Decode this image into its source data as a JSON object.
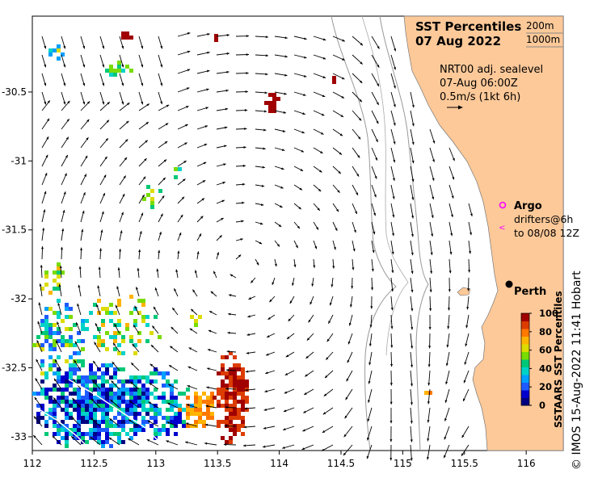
{
  "map": {
    "title_line1": "SST Percentiles",
    "title_line2": "07 Aug 2022",
    "isobath_labels": [
      "200m",
      "1000m"
    ],
    "current_info": [
      "NRT00 adj. sealevel",
      "07-Aug 06:00Z",
      "0.5m/s (1kt 6h)"
    ],
    "legend": {
      "argo_label": "Argo",
      "drifters_line1": "drifters@6h",
      "drifters_line2": "to 08/08 12Z"
    },
    "city_label": "Perth",
    "credit": "© IMOS 15-Aug-2022 11:41 Hobart",
    "extent": {
      "lon_min": 112,
      "lon_max": 116.3,
      "lat_min": -33.1,
      "lat_max": -29.95
    },
    "x_ticks": [
      "112",
      "112.5",
      "113",
      "113.5",
      "114",
      "114.5",
      "115",
      "115.5",
      "116"
    ],
    "y_ticks": [
      "-30.5",
      "-31",
      "-31.5",
      "-32",
      "-32.5",
      "-33"
    ],
    "colorbar": {
      "title": "SSTAARS SST Percentiles",
      "ticks": [
        "0",
        "20",
        "40",
        "60",
        "80",
        "100"
      ],
      "colors": [
        "#000080",
        "#0000cd",
        "#1e5aff",
        "#00a0ff",
        "#00d2c8",
        "#00c878",
        "#78dc00",
        "#dcdc00",
        "#ffb400",
        "#ff7800",
        "#dc3c00",
        "#a00000"
      ]
    },
    "colors": {
      "land": "#fdc999",
      "ocean": "#ffffff",
      "argo": "#ff00ff",
      "perth_dot": "#000000"
    }
  }
}
